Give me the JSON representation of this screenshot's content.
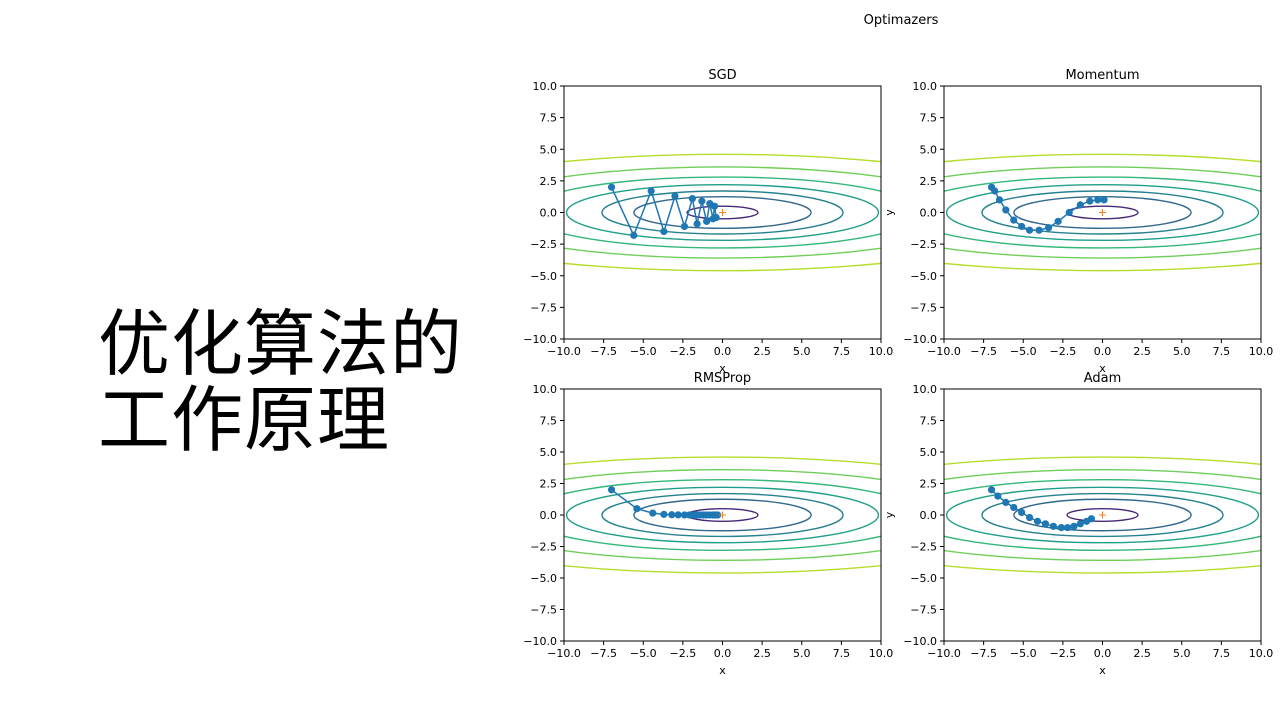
{
  "slide": {
    "title": "优化算法的\n工作原理"
  },
  "figure": {
    "suptitle": "Optimazers"
  },
  "contour_colors": [
    "#482878",
    "#31688e",
    "#26828e",
    "#1f9e89",
    "#35b779",
    "#6ece58",
    "#b5de2b"
  ],
  "colors": {
    "path": "#1f77b4",
    "minimum": "#ff7f0e"
  },
  "chart_data": [
    {
      "type": "line",
      "title": "SGD",
      "xlabel": "x",
      "ylabel": "",
      "xlim": [
        -10,
        10
      ],
      "ylim": [
        -10,
        10
      ],
      "xticks": [
        -10,
        -7.5,
        -5,
        -2.5,
        0,
        2.5,
        5,
        7.5,
        10
      ],
      "yticks": [
        -10,
        -7.5,
        -5,
        -2.5,
        0,
        2.5,
        5,
        7.5,
        10
      ],
      "contour_levels": [
        0.5,
        1.25,
        1.7,
        2.2,
        2.8,
        3.6,
        4.6
      ],
      "minimum": [
        0,
        0
      ],
      "series": [
        {
          "x": [
            -7.0,
            -5.6,
            -4.5,
            -3.7,
            -3.0,
            -2.4,
            -1.9,
            -1.6,
            -1.3,
            -1.0,
            -0.8,
            -0.6,
            -0.5,
            -0.4
          ],
          "y": [
            2.0,
            -1.8,
            1.7,
            -1.5,
            1.3,
            -1.1,
            1.1,
            -0.9,
            0.9,
            -0.7,
            0.7,
            -0.5,
            0.5,
            -0.4
          ]
        }
      ]
    },
    {
      "type": "line",
      "title": "Momentum",
      "xlabel": "x",
      "ylabel": "y",
      "xlim": [
        -10,
        10
      ],
      "ylim": [
        -10,
        10
      ],
      "xticks": [
        -10,
        -7.5,
        -5,
        -2.5,
        0,
        2.5,
        5,
        7.5,
        10
      ],
      "yticks": [
        -10,
        -7.5,
        -5,
        -2.5,
        0,
        2.5,
        5,
        7.5,
        10
      ],
      "contour_levels": [
        0.5,
        1.25,
        1.7,
        2.2,
        2.8,
        3.6,
        4.6
      ],
      "minimum": [
        0,
        0
      ],
      "series": [
        {
          "x": [
            -7.0,
            -6.8,
            -6.5,
            -6.1,
            -5.6,
            -5.1,
            -4.6,
            -4.0,
            -3.4,
            -2.8,
            -2.1,
            -1.4,
            -0.8,
            -0.3,
            0.1
          ],
          "y": [
            2.0,
            1.7,
            1.0,
            0.2,
            -0.6,
            -1.1,
            -1.4,
            -1.4,
            -1.2,
            -0.7,
            0.0,
            0.6,
            0.9,
            1.0,
            1.0
          ]
        }
      ]
    },
    {
      "type": "line",
      "title": "RMSProp",
      "xlabel": "x",
      "ylabel": "",
      "xlim": [
        -10,
        10
      ],
      "ylim": [
        -10,
        10
      ],
      "xticks": [
        -10,
        -7.5,
        -5,
        -2.5,
        0,
        2.5,
        5,
        7.5,
        10
      ],
      "yticks": [
        -10,
        -7.5,
        -5,
        -2.5,
        0,
        2.5,
        5,
        7.5,
        10
      ],
      "contour_levels": [
        0.5,
        1.25,
        1.7,
        2.2,
        2.8,
        3.6,
        4.6
      ],
      "minimum": [
        0,
        0
      ],
      "series": [
        {
          "x": [
            -7.0,
            -5.4,
            -4.4,
            -3.7,
            -3.2,
            -2.8,
            -2.4,
            -2.1,
            -1.8,
            -1.6,
            -1.4,
            -1.2,
            -1.0,
            -0.8,
            -0.6,
            -0.45,
            -0.3
          ],
          "y": [
            2.0,
            0.5,
            0.15,
            0.05,
            0.02,
            0.01,
            0,
            0,
            0,
            0,
            0,
            0,
            0,
            0,
            0,
            0,
            0
          ]
        }
      ]
    },
    {
      "type": "line",
      "title": "Adam",
      "xlabel": "x",
      "ylabel": "y",
      "xlim": [
        -10,
        10
      ],
      "ylim": [
        -10,
        10
      ],
      "xticks": [
        -10,
        -7.5,
        -5,
        -2.5,
        0,
        2.5,
        5,
        7.5,
        10
      ],
      "yticks": [
        -10,
        -7.5,
        -5,
        -2.5,
        0,
        2.5,
        5,
        7.5,
        10
      ],
      "contour_levels": [
        0.5,
        1.25,
        1.7,
        2.2,
        2.8,
        3.6,
        4.6
      ],
      "minimum": [
        0,
        0
      ],
      "series": [
        {
          "x": [
            -7.0,
            -6.6,
            -6.1,
            -5.6,
            -5.1,
            -4.6,
            -4.1,
            -3.6,
            -3.1,
            -2.6,
            -2.2,
            -1.8,
            -1.4,
            -1.0,
            -0.7
          ],
          "y": [
            2.0,
            1.5,
            1.0,
            0.6,
            0.2,
            -0.2,
            -0.5,
            -0.7,
            -0.9,
            -1.0,
            -1.0,
            -0.9,
            -0.7,
            -0.5,
            -0.3
          ]
        }
      ]
    }
  ]
}
